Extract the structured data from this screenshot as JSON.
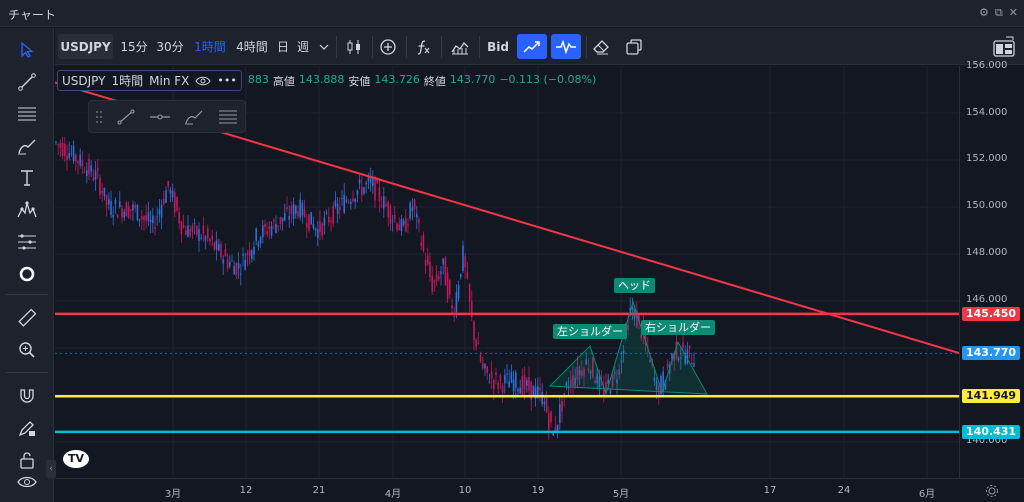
{
  "window": {
    "title": "チャート"
  },
  "toolbar": {
    "symbol": "USDJPY",
    "intervals": [
      "15分",
      "30分",
      "1時間",
      "4時間",
      "日",
      "週"
    ],
    "active_interval": "1時間",
    "bid_label": "Bid"
  },
  "legend": {
    "symbol": "USDJPY",
    "interval": "1時間",
    "source": "Min FX",
    "open_fragment": "883",
    "high_label": "高値",
    "high": "143.888",
    "low_label": "安値",
    "low": "143.726",
    "close_label": "終値",
    "close": "143.770",
    "change": "−0.113 (−0.08%)"
  },
  "annotations": {
    "head": "ヘッド",
    "left_shoulder": "左ショルダー",
    "right_shoulder": "右ショルダー"
  },
  "price_scale": {
    "ticks": [
      "156.000",
      "154.000",
      "152.000",
      "150.000",
      "148.000",
      "146.000",
      "140.000"
    ],
    "labels": [
      {
        "value": "145.450",
        "color": "#f23645"
      },
      {
        "value": "143.770",
        "color": "#2196f3"
      },
      {
        "value": "141.949",
        "color": "#ffeb3b"
      },
      {
        "value": "140.431",
        "color": "#00bcd4"
      }
    ]
  },
  "time_scale": {
    "ticks": [
      "3月",
      "12",
      "21",
      "4月",
      "10",
      "19",
      "5月",
      "17",
      "24",
      "6月"
    ]
  },
  "horizontal_lines": [
    {
      "price": 145.45,
      "color": "#f23645"
    },
    {
      "price": 141.949,
      "color": "#ffeb3b"
    },
    {
      "price": 140.431,
      "color": "#00bcd4"
    }
  ],
  "icons": {
    "left_toolbar": [
      "cursor-icon",
      "trend-line-icon",
      "fib-icon",
      "brush-icon",
      "text-icon",
      "pattern-icon",
      "forecast-icon",
      "circle-icon",
      "ruler-icon",
      "zoom-icon",
      "magnet-icon",
      "lock-drawing-icon",
      "lock-icon",
      "eye-icon"
    ]
  }
}
